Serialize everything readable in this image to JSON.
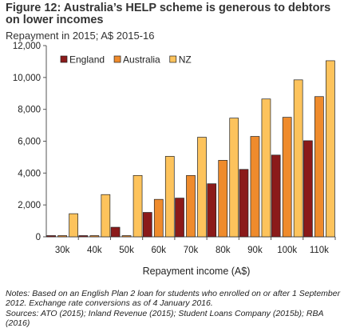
{
  "figure": {
    "title": "Figure 12: Australia’s HELP scheme is generous to debtors on lower incomes",
    "subtitle": "Repayment in 2015; A$ 2015-16",
    "notes": "Notes: Based on an English Plan 2 loan for students who enrolled on or after 1 September 2012. Exchange rate conversions as of 4 January 2016.",
    "sources": "Sources: ATO (2015); Inland Revenue (2015); Student Loans Company (2015b); RBA (2016)"
  },
  "chart_data": {
    "type": "bar",
    "title": "Figure 12: Australia’s HELP scheme is generous to debtors on lower incomes",
    "subtitle": "Repayment in 2015; A$ 2015-16",
    "xlabel": "Repayment income (A$)",
    "ylabel": "",
    "categories": [
      "30k",
      "40k",
      "50k",
      "60k",
      "70k",
      "80k",
      "90k",
      "100k",
      "110k"
    ],
    "series": [
      {
        "name": "England",
        "color": "#8b1a1a",
        "values": [
          0,
          0,
          600,
          1530,
          2430,
          3330,
          4230,
          5130,
          6030
        ]
      },
      {
        "name": "Australia",
        "color": "#ef8b2c",
        "values": [
          0,
          0,
          0,
          2350,
          3850,
          4800,
          6300,
          7500,
          8800
        ]
      },
      {
        "name": "NZ",
        "color": "#fdc35c",
        "values": [
          1450,
          2650,
          3850,
          5050,
          6250,
          7450,
          8650,
          9850,
          11050
        ]
      }
    ],
    "ylim": [
      0,
      12000
    ],
    "yticks": [
      0,
      2000,
      4000,
      6000,
      8000,
      10000,
      12000
    ],
    "ytick_labels": [
      "0",
      "2,000",
      "4,000",
      "6,000",
      "8,000",
      "10,000",
      "12,000"
    ],
    "grid": false,
    "legend_position": "top-left"
  }
}
